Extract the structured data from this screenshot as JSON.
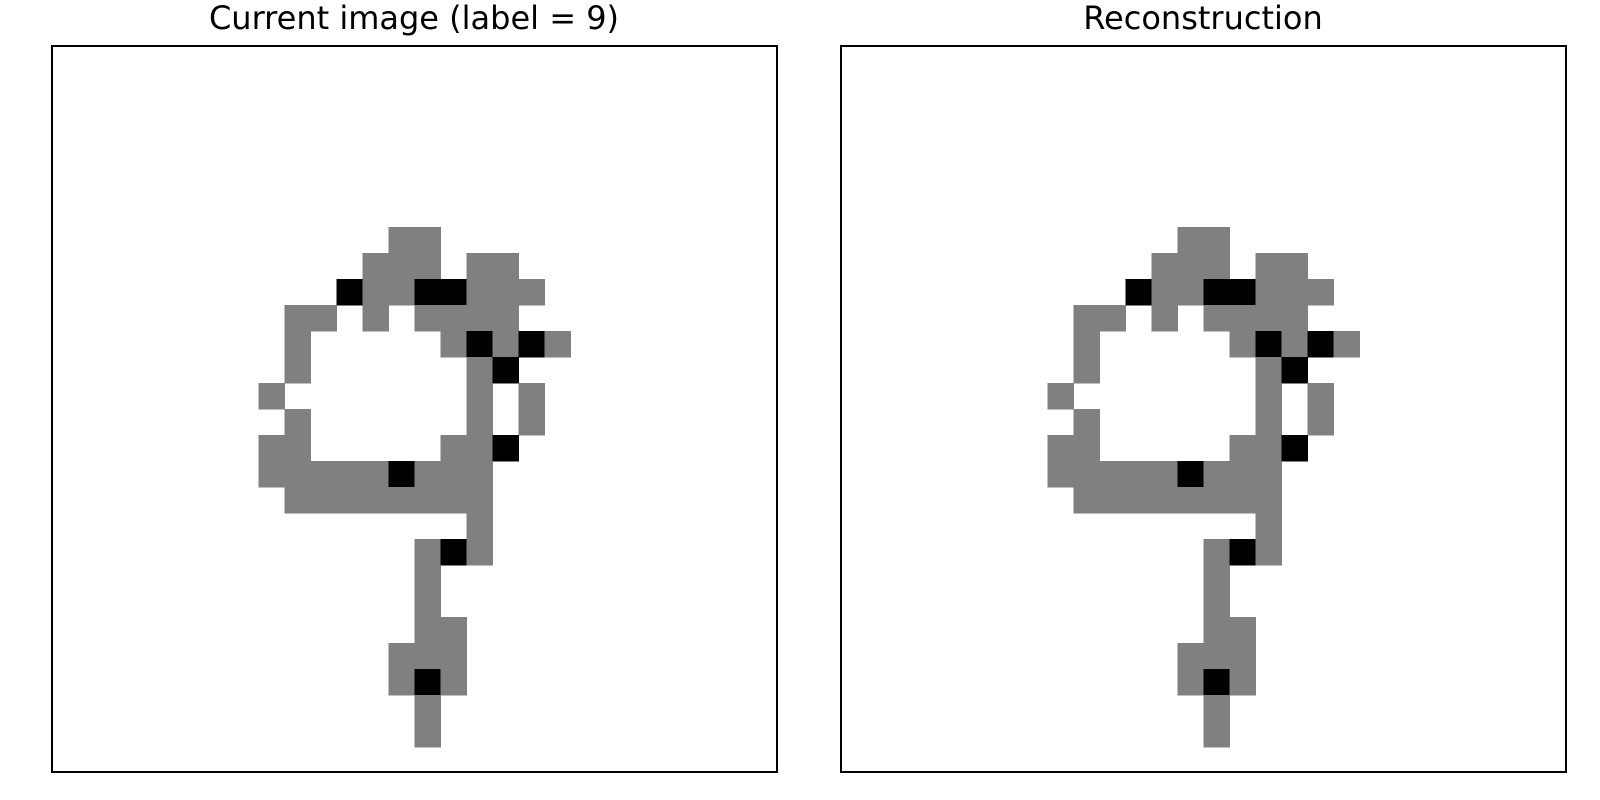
{
  "chart_data": [
    {
      "type": "heatmap",
      "title": "Current image (label = 9)",
      "rows": 28,
      "cols": 28,
      "value_scale": {
        "min": 0,
        "max": 2,
        "colors": {
          "0": "#ffffff",
          "1": "#808080",
          "2": "#000000"
        }
      },
      "axes_visible": false,
      "cells": [
        {
          "row": 7,
          "runs": [
            [
              13,
              14,
              1
            ]
          ]
        },
        {
          "row": 8,
          "runs": [
            [
              12,
              14,
              1
            ],
            [
              16,
              17,
              1
            ]
          ]
        },
        {
          "row": 9,
          "runs": [
            [
              11,
              11,
              2
            ],
            [
              12,
              13,
              1
            ],
            [
              14,
              15,
              2
            ],
            [
              16,
              18,
              1
            ]
          ]
        },
        {
          "row": 10,
          "runs": [
            [
              9,
              10,
              1
            ],
            [
              12,
              12,
              1
            ],
            [
              14,
              17,
              1
            ]
          ]
        },
        {
          "row": 11,
          "runs": [
            [
              9,
              9,
              1
            ],
            [
              15,
              15,
              1
            ],
            [
              16,
              16,
              2
            ],
            [
              17,
              17,
              1
            ],
            [
              18,
              18,
              2
            ],
            [
              19,
              19,
              1
            ]
          ]
        },
        {
          "row": 12,
          "runs": [
            [
              9,
              9,
              1
            ],
            [
              16,
              16,
              1
            ],
            [
              17,
              17,
              2
            ]
          ]
        },
        {
          "row": 13,
          "runs": [
            [
              8,
              8,
              1
            ],
            [
              16,
              16,
              1
            ],
            [
              18,
              18,
              1
            ]
          ]
        },
        {
          "row": 14,
          "runs": [
            [
              9,
              9,
              1
            ],
            [
              16,
              16,
              1
            ],
            [
              18,
              18,
              1
            ]
          ]
        },
        {
          "row": 15,
          "runs": [
            [
              8,
              9,
              1
            ],
            [
              15,
              16,
              1
            ],
            [
              17,
              17,
              2
            ]
          ]
        },
        {
          "row": 16,
          "runs": [
            [
              8,
              12,
              1
            ],
            [
              13,
              13,
              2
            ],
            [
              14,
              16,
              1
            ]
          ]
        },
        {
          "row": 17,
          "runs": [
            [
              9,
              16,
              1
            ]
          ]
        },
        {
          "row": 18,
          "runs": [
            [
              16,
              16,
              1
            ]
          ]
        },
        {
          "row": 19,
          "runs": [
            [
              14,
              14,
              1
            ],
            [
              15,
              15,
              2
            ],
            [
              16,
              16,
              1
            ]
          ]
        },
        {
          "row": 20,
          "runs": [
            [
              14,
              14,
              1
            ]
          ]
        },
        {
          "row": 21,
          "runs": [
            [
              14,
              14,
              1
            ]
          ]
        },
        {
          "row": 22,
          "runs": [
            [
              14,
              15,
              1
            ]
          ]
        },
        {
          "row": 23,
          "runs": [
            [
              13,
              15,
              1
            ]
          ]
        },
        {
          "row": 24,
          "runs": [
            [
              13,
              13,
              1
            ],
            [
              14,
              14,
              2
            ],
            [
              15,
              15,
              1
            ]
          ]
        },
        {
          "row": 25,
          "runs": [
            [
              14,
              14,
              1
            ]
          ]
        },
        {
          "row": 26,
          "runs": [
            [
              14,
              14,
              1
            ]
          ]
        }
      ]
    },
    {
      "type": "heatmap",
      "title": "Reconstruction",
      "rows": 28,
      "cols": 28,
      "value_scale": {
        "min": 0,
        "max": 2,
        "colors": {
          "0": "#ffffff",
          "1": "#808080",
          "2": "#000000"
        }
      },
      "axes_visible": false,
      "cells": [
        {
          "row": 7,
          "runs": [
            [
              13,
              14,
              1
            ]
          ]
        },
        {
          "row": 8,
          "runs": [
            [
              12,
              14,
              1
            ],
            [
              16,
              17,
              1
            ]
          ]
        },
        {
          "row": 9,
          "runs": [
            [
              11,
              11,
              2
            ],
            [
              12,
              13,
              1
            ],
            [
              14,
              15,
              2
            ],
            [
              16,
              18,
              1
            ]
          ]
        },
        {
          "row": 10,
          "runs": [
            [
              9,
              10,
              1
            ],
            [
              12,
              12,
              1
            ],
            [
              14,
              17,
              1
            ]
          ]
        },
        {
          "row": 11,
          "runs": [
            [
              9,
              9,
              1
            ],
            [
              15,
              15,
              1
            ],
            [
              16,
              16,
              2
            ],
            [
              17,
              17,
              1
            ],
            [
              18,
              18,
              2
            ],
            [
              19,
              19,
              1
            ]
          ]
        },
        {
          "row": 12,
          "runs": [
            [
              9,
              9,
              1
            ],
            [
              16,
              16,
              1
            ],
            [
              17,
              17,
              2
            ]
          ]
        },
        {
          "row": 13,
          "runs": [
            [
              8,
              8,
              1
            ],
            [
              16,
              16,
              1
            ],
            [
              18,
              18,
              1
            ]
          ]
        },
        {
          "row": 14,
          "runs": [
            [
              9,
              9,
              1
            ],
            [
              16,
              16,
              1
            ],
            [
              18,
              18,
              1
            ]
          ]
        },
        {
          "row": 15,
          "runs": [
            [
              8,
              9,
              1
            ],
            [
              15,
              16,
              1
            ],
            [
              17,
              17,
              2
            ]
          ]
        },
        {
          "row": 16,
          "runs": [
            [
              8,
              12,
              1
            ],
            [
              13,
              13,
              2
            ],
            [
              14,
              16,
              1
            ]
          ]
        },
        {
          "row": 17,
          "runs": [
            [
              9,
              16,
              1
            ]
          ]
        },
        {
          "row": 18,
          "runs": [
            [
              16,
              16,
              1
            ]
          ]
        },
        {
          "row": 19,
          "runs": [
            [
              14,
              14,
              1
            ],
            [
              15,
              15,
              2
            ],
            [
              16,
              16,
              1
            ]
          ]
        },
        {
          "row": 20,
          "runs": [
            [
              14,
              14,
              1
            ]
          ]
        },
        {
          "row": 21,
          "runs": [
            [
              14,
              14,
              1
            ]
          ]
        },
        {
          "row": 22,
          "runs": [
            [
              14,
              15,
              1
            ]
          ]
        },
        {
          "row": 23,
          "runs": [
            [
              13,
              15,
              1
            ]
          ]
        },
        {
          "row": 24,
          "runs": [
            [
              13,
              13,
              1
            ],
            [
              14,
              14,
              2
            ],
            [
              15,
              15,
              1
            ]
          ]
        },
        {
          "row": 25,
          "runs": [
            [
              14,
              14,
              1
            ]
          ]
        },
        {
          "row": 26,
          "runs": [
            [
              14,
              14,
              1
            ]
          ]
        }
      ]
    }
  ]
}
